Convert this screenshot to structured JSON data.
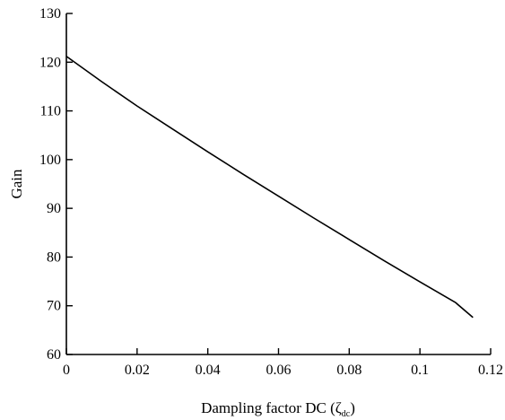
{
  "chart_data": {
    "type": "line",
    "title": "",
    "xlabel": "Dampling factor DC (ζ",
    "xlabel_subscript": "dc",
    "xlabel_close": ")",
    "ylabel": "Gain",
    "xlim": [
      0,
      0.12
    ],
    "ylim": [
      60,
      130
    ],
    "xticks": [
      0,
      0.02,
      0.04,
      0.06,
      0.08,
      0.1,
      0.12
    ],
    "xtick_labels": [
      "0",
      "0.02",
      "0.04",
      "0.06",
      "0.08",
      "0.1",
      "0.12"
    ],
    "yticks": [
      60,
      70,
      80,
      90,
      100,
      110,
      120,
      130
    ],
    "ytick_labels": [
      "60",
      "70",
      "80",
      "90",
      "100",
      "110",
      "120",
      "130"
    ],
    "grid": false,
    "series": [
      {
        "color": "#000000",
        "x": [
          0,
          0.01,
          0.02,
          0.03,
          0.04,
          0.05,
          0.06,
          0.07,
          0.08,
          0.09,
          0.1,
          0.11,
          0.115
        ],
        "values": [
          121.2,
          116.0,
          111.0,
          106.3,
          101.6,
          97.0,
          92.5,
          88.0,
          83.6,
          79.2,
          74.9,
          70.7,
          67.6
        ]
      }
    ]
  }
}
